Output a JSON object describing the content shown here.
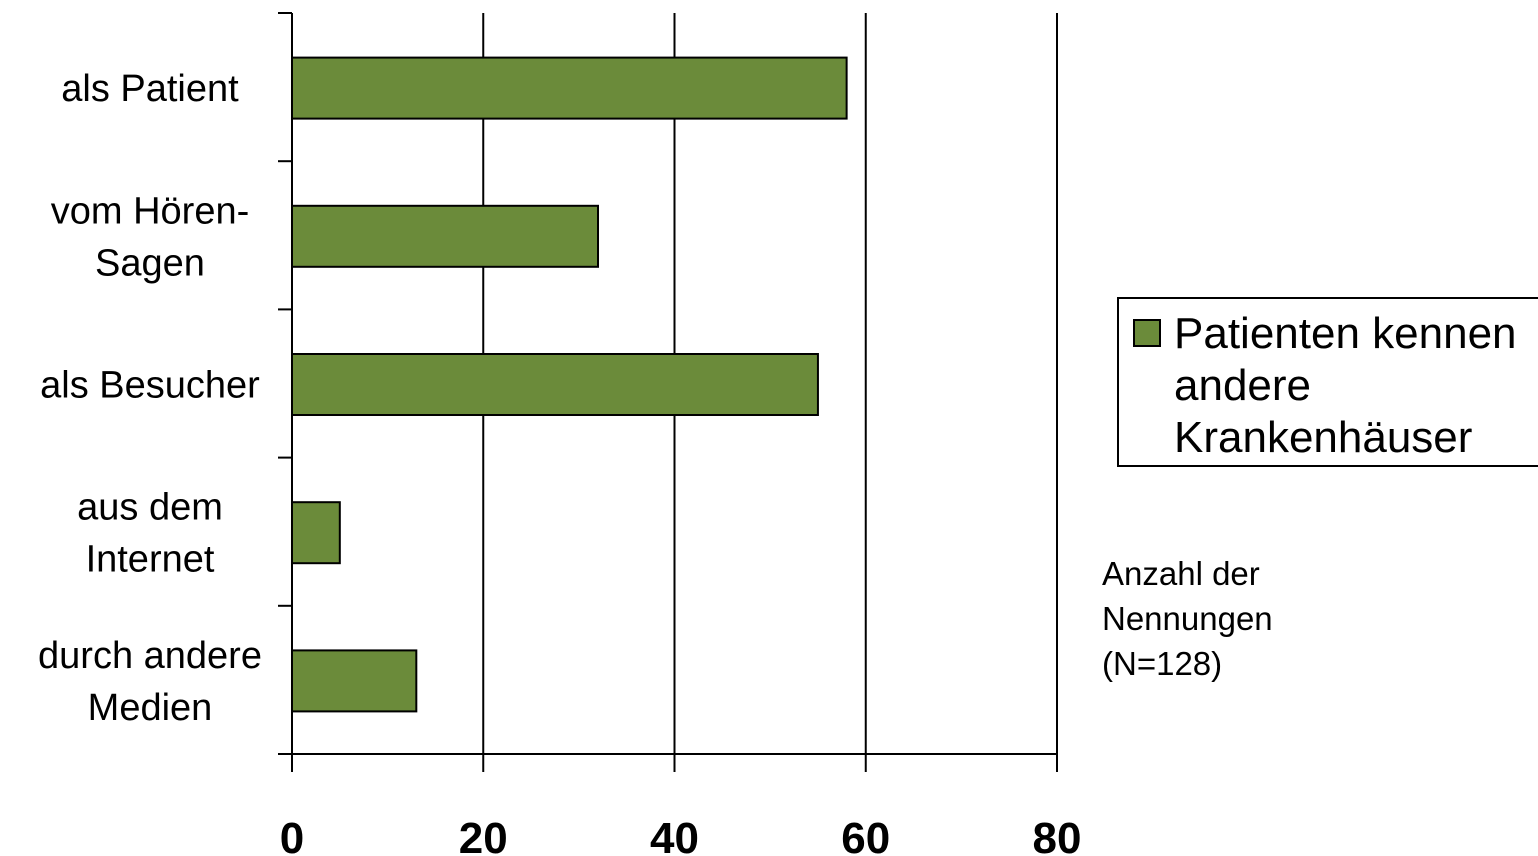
{
  "chart_data": {
    "type": "bar",
    "orientation": "horizontal",
    "categories": [
      [
        "als Patient"
      ],
      [
        "vom Hören-",
        "Sagen"
      ],
      [
        "als Besucher"
      ],
      [
        "aus dem",
        "Internet"
      ],
      [
        "durch andere",
        "Medien"
      ]
    ],
    "series": [
      {
        "name": [
          "Patienten kennen",
          "andere",
          "Krankenhäuser"
        ],
        "values": [
          58,
          32,
          55,
          5,
          13
        ],
        "color": "#6b8b3a"
      }
    ],
    "xlim": [
      0,
      80
    ],
    "xticks": [
      "0",
      "20",
      "40",
      "60",
      "80"
    ],
    "grid": true,
    "legend_position": "right",
    "annotation": [
      "Anzahl der",
      "Nennungen",
      "(N=128)"
    ]
  }
}
